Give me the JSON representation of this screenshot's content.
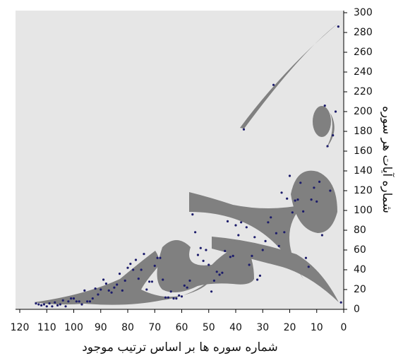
{
  "chart_data": {
    "type": "scatter",
    "x_label": "شماره سوره ها بر اساس ترتیب موجود",
    "y_label": "شماره آیات هر سوره",
    "x": [
      1,
      2,
      3,
      4,
      5,
      6,
      7,
      8,
      9,
      10,
      11,
      12,
      13,
      14,
      15,
      16,
      17,
      18,
      19,
      20,
      21,
      22,
      23,
      24,
      25,
      26,
      27,
      28,
      29,
      30,
      31,
      32,
      33,
      34,
      35,
      36,
      37,
      38,
      39,
      40,
      41,
      42,
      43,
      44,
      45,
      46,
      47,
      48,
      49,
      50,
      51,
      52,
      53,
      54,
      55,
      56,
      57,
      58,
      59,
      60,
      61,
      62,
      63,
      64,
      65,
      66,
      67,
      68,
      69,
      70,
      71,
      72,
      73,
      74,
      75,
      76,
      77,
      78,
      79,
      80,
      81,
      82,
      83,
      84,
      85,
      86,
      87,
      88,
      89,
      90,
      91,
      92,
      93,
      94,
      95,
      96,
      97,
      98,
      99,
      100,
      101,
      102,
      103,
      104,
      105,
      106,
      107,
      108,
      109,
      110,
      111,
      112,
      113,
      114
    ],
    "values": [
      7,
      286,
      200,
      176,
      120,
      165,
      206,
      75,
      129,
      109,
      123,
      111,
      43,
      52,
      99,
      128,
      111,
      110,
      98,
      135,
      112,
      78,
      118,
      64,
      77,
      227,
      93,
      88,
      69,
      60,
      34,
      30,
      73,
      54,
      45,
      83,
      182,
      88,
      75,
      85,
      54,
      53,
      89,
      59,
      37,
      35,
      38,
      29,
      18,
      45,
      60,
      49,
      62,
      55,
      78,
      96,
      29,
      22,
      24,
      13,
      14,
      11,
      11,
      18,
      12,
      12,
      30,
      52,
      52,
      44,
      28,
      28,
      20,
      56,
      40,
      31,
      50,
      40,
      46,
      42,
      29,
      19,
      36,
      25,
      22,
      17,
      19,
      26,
      30,
      20,
      15,
      21,
      11,
      8,
      8,
      19,
      5,
      8,
      8,
      11,
      11,
      8,
      3,
      9,
      5,
      4,
      7,
      3,
      6,
      3,
      5,
      4,
      5,
      6
    ],
    "color": "#1c1c6b",
    "xlim": [
      120,
      0
    ],
    "ylim": [
      0,
      300
    ],
    "xticks": [
      120,
      110,
      100,
      90,
      80,
      70,
      60,
      50,
      40,
      30,
      20,
      10,
      0
    ],
    "yticks": [
      0,
      20,
      40,
      60,
      80,
      100,
      120,
      140,
      160,
      180,
      200,
      220,
      240,
      260,
      280,
      300
    ]
  }
}
